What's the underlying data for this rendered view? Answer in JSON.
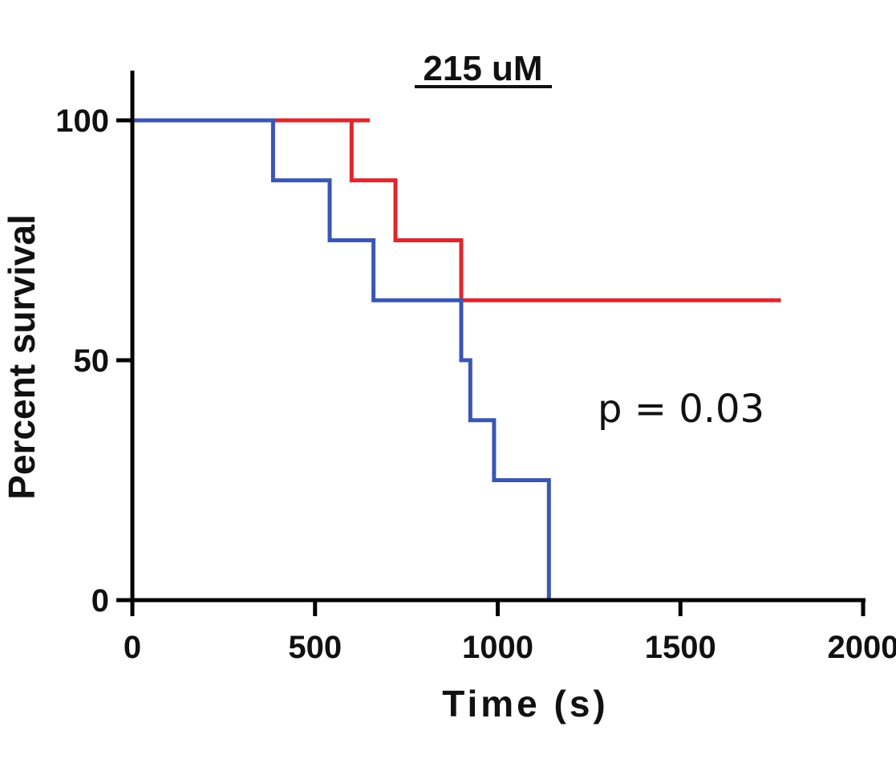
{
  "chart_data": {
    "type": "line",
    "title": "215 uM",
    "xlabel": "Time (s)",
    "ylabel": "Percent survival",
    "xlim": [
      0,
      2000
    ],
    "ylim": [
      0,
      100
    ],
    "x_ticks": [
      "0",
      "500",
      "1000",
      "1500",
      "2000"
    ],
    "y_ticks": [
      "0",
      "50",
      "100"
    ],
    "grid": false,
    "annotation": "p = 0.03",
    "series": [
      {
        "color": "#e0262c",
        "step": true,
        "points": [
          [
            0,
            100
          ],
          [
            600,
            100
          ],
          [
            600,
            87.5
          ],
          [
            720,
            87.5
          ],
          [
            720,
            75
          ],
          [
            900,
            75
          ],
          [
            900,
            62.5
          ],
          [
            1775,
            62.5
          ]
        ],
        "extra_segments": [
          [
            [
              440,
              100
            ],
            [
              650,
              100
            ]
          ]
        ]
      },
      {
        "color": "#3a56b4",
        "step": true,
        "points": [
          [
            0,
            100
          ],
          [
            385,
            100
          ],
          [
            385,
            87.5
          ],
          [
            540,
            87.5
          ],
          [
            540,
            75
          ],
          [
            660,
            75
          ],
          [
            660,
            62.5
          ],
          [
            900,
            62.5
          ],
          [
            900,
            50
          ],
          [
            925,
            50
          ],
          [
            925,
            37.5
          ],
          [
            990,
            37.5
          ],
          [
            990,
            25
          ],
          [
            1140,
            25
          ],
          [
            1140,
            0
          ]
        ]
      }
    ]
  }
}
